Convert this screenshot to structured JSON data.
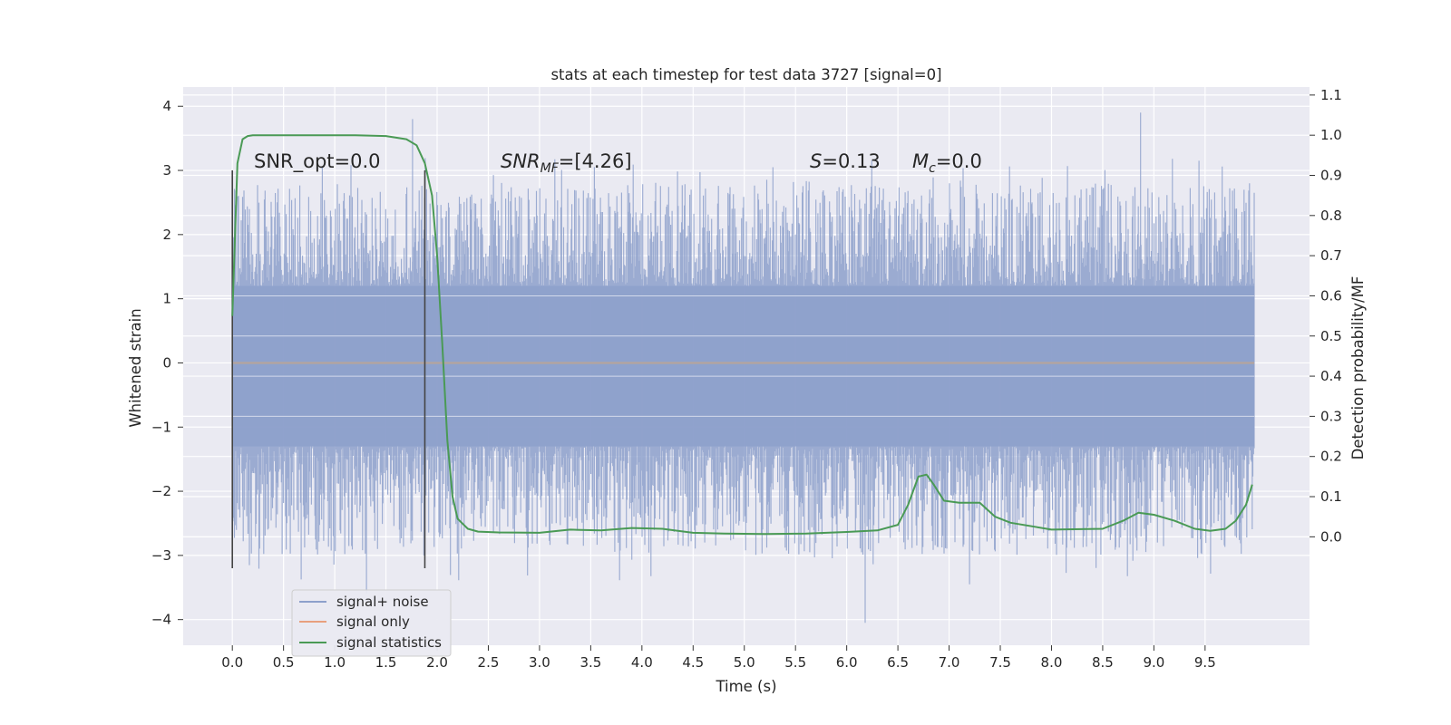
{
  "chart_data": {
    "type": "line",
    "title": "stats at each timestep for test data 3727 [signal=0]",
    "xlabel": "Time (s)",
    "ylabel": "Whitened strain",
    "ylabel_right": "Detection probability/MF",
    "xlim": [
      -0.48,
      10.52
    ],
    "ylim": [
      -4.4,
      4.3
    ],
    "ylim_right": [
      -0.27,
      1.12
    ],
    "x_ticks": [
      "0.0",
      "0.5",
      "1.0",
      "1.5",
      "2.0",
      "2.5",
      "3.0",
      "3.5",
      "4.0",
      "4.5",
      "5.0",
      "5.5",
      "6.0",
      "6.5",
      "7.0",
      "7.5",
      "8.0",
      "8.5",
      "9.0",
      "9.5"
    ],
    "y_ticks": [
      "4",
      "3",
      "2",
      "1",
      "0",
      "−1",
      "−2",
      "−3",
      "−4"
    ],
    "y_right_ticks": [
      "1.1",
      "1.0",
      "0.9",
      "0.8",
      "0.7",
      "0.6",
      "0.5",
      "0.4",
      "0.3",
      "0.2",
      "0.1",
      "0.0"
    ],
    "grid": true,
    "legend_position": "lower-left",
    "colors": {
      "noise": "#8da0cb",
      "signal": "#e8a07e",
      "stats": "#4a9a55",
      "markers": "#444444",
      "plot_bg": "#eaeaf2",
      "grid": "#ffffff"
    },
    "annotations": {
      "snr_opt": "SNR_opt=0.0",
      "snr_mf_main": "SNR",
      "snr_mf_sub": "MF",
      "snr_mf_rest": "=[4.26]",
      "s_var": "S",
      "s_rest": "=0.13",
      "mc_var": "M",
      "mc_sub": "c",
      "mc_rest": "=0.0"
    },
    "vertical_markers": [
      {
        "x": 0.0,
        "y_range": [
          -3.2,
          3.0
        ]
      },
      {
        "x": 1.88,
        "y_range": [
          -3.2,
          3.0
        ]
      }
    ],
    "series": [
      {
        "name": "signal+ noise",
        "description_kind": "noise band",
        "x_range": [
          0.0,
          9.98
        ],
        "core_band": [
          -1.3,
          1.2
        ],
        "envelope": [
          -3.0,
          2.8
        ],
        "notable_spikes": [
          {
            "x": 1.76,
            "y": 3.8
          },
          {
            "x": 8.87,
            "y": 3.9
          },
          {
            "x": 1.31,
            "y": -3.6
          },
          {
            "x": 6.18,
            "y": -4.05
          },
          {
            "x": 7.2,
            "y": -3.45
          }
        ]
      },
      {
        "name": "signal only",
        "x": [
          0.0,
          9.98
        ],
        "y": [
          0.0,
          0.0
        ]
      },
      {
        "name": "signal statistics",
        "axis": "right",
        "x": [
          0.0,
          0.05,
          0.1,
          0.15,
          0.2,
          0.3,
          0.5,
          0.8,
          1.2,
          1.5,
          1.7,
          1.8,
          1.88,
          1.95,
          2.0,
          2.05,
          2.1,
          2.15,
          2.2,
          2.3,
          2.4,
          2.6,
          3.0,
          3.3,
          3.6,
          3.9,
          4.2,
          4.5,
          4.8,
          5.2,
          5.6,
          6.0,
          6.3,
          6.5,
          6.6,
          6.7,
          6.78,
          6.85,
          6.95,
          7.1,
          7.3,
          7.45,
          7.6,
          8.0,
          8.5,
          8.7,
          8.85,
          9.0,
          9.2,
          9.4,
          9.55,
          9.7,
          9.8,
          9.9,
          9.96
        ],
        "y": [
          0.55,
          0.93,
          0.99,
          0.998,
          1.0,
          1.0,
          1.0,
          1.0,
          1.0,
          0.998,
          0.99,
          0.975,
          0.93,
          0.85,
          0.7,
          0.48,
          0.24,
          0.1,
          0.045,
          0.02,
          0.013,
          0.011,
          0.01,
          0.018,
          0.016,
          0.022,
          0.02,
          0.01,
          0.008,
          0.007,
          0.008,
          0.012,
          0.016,
          0.03,
          0.08,
          0.15,
          0.155,
          0.13,
          0.09,
          0.085,
          0.085,
          0.05,
          0.035,
          0.018,
          0.02,
          0.04,
          0.06,
          0.055,
          0.04,
          0.02,
          0.015,
          0.02,
          0.04,
          0.08,
          0.13
        ]
      }
    ]
  }
}
